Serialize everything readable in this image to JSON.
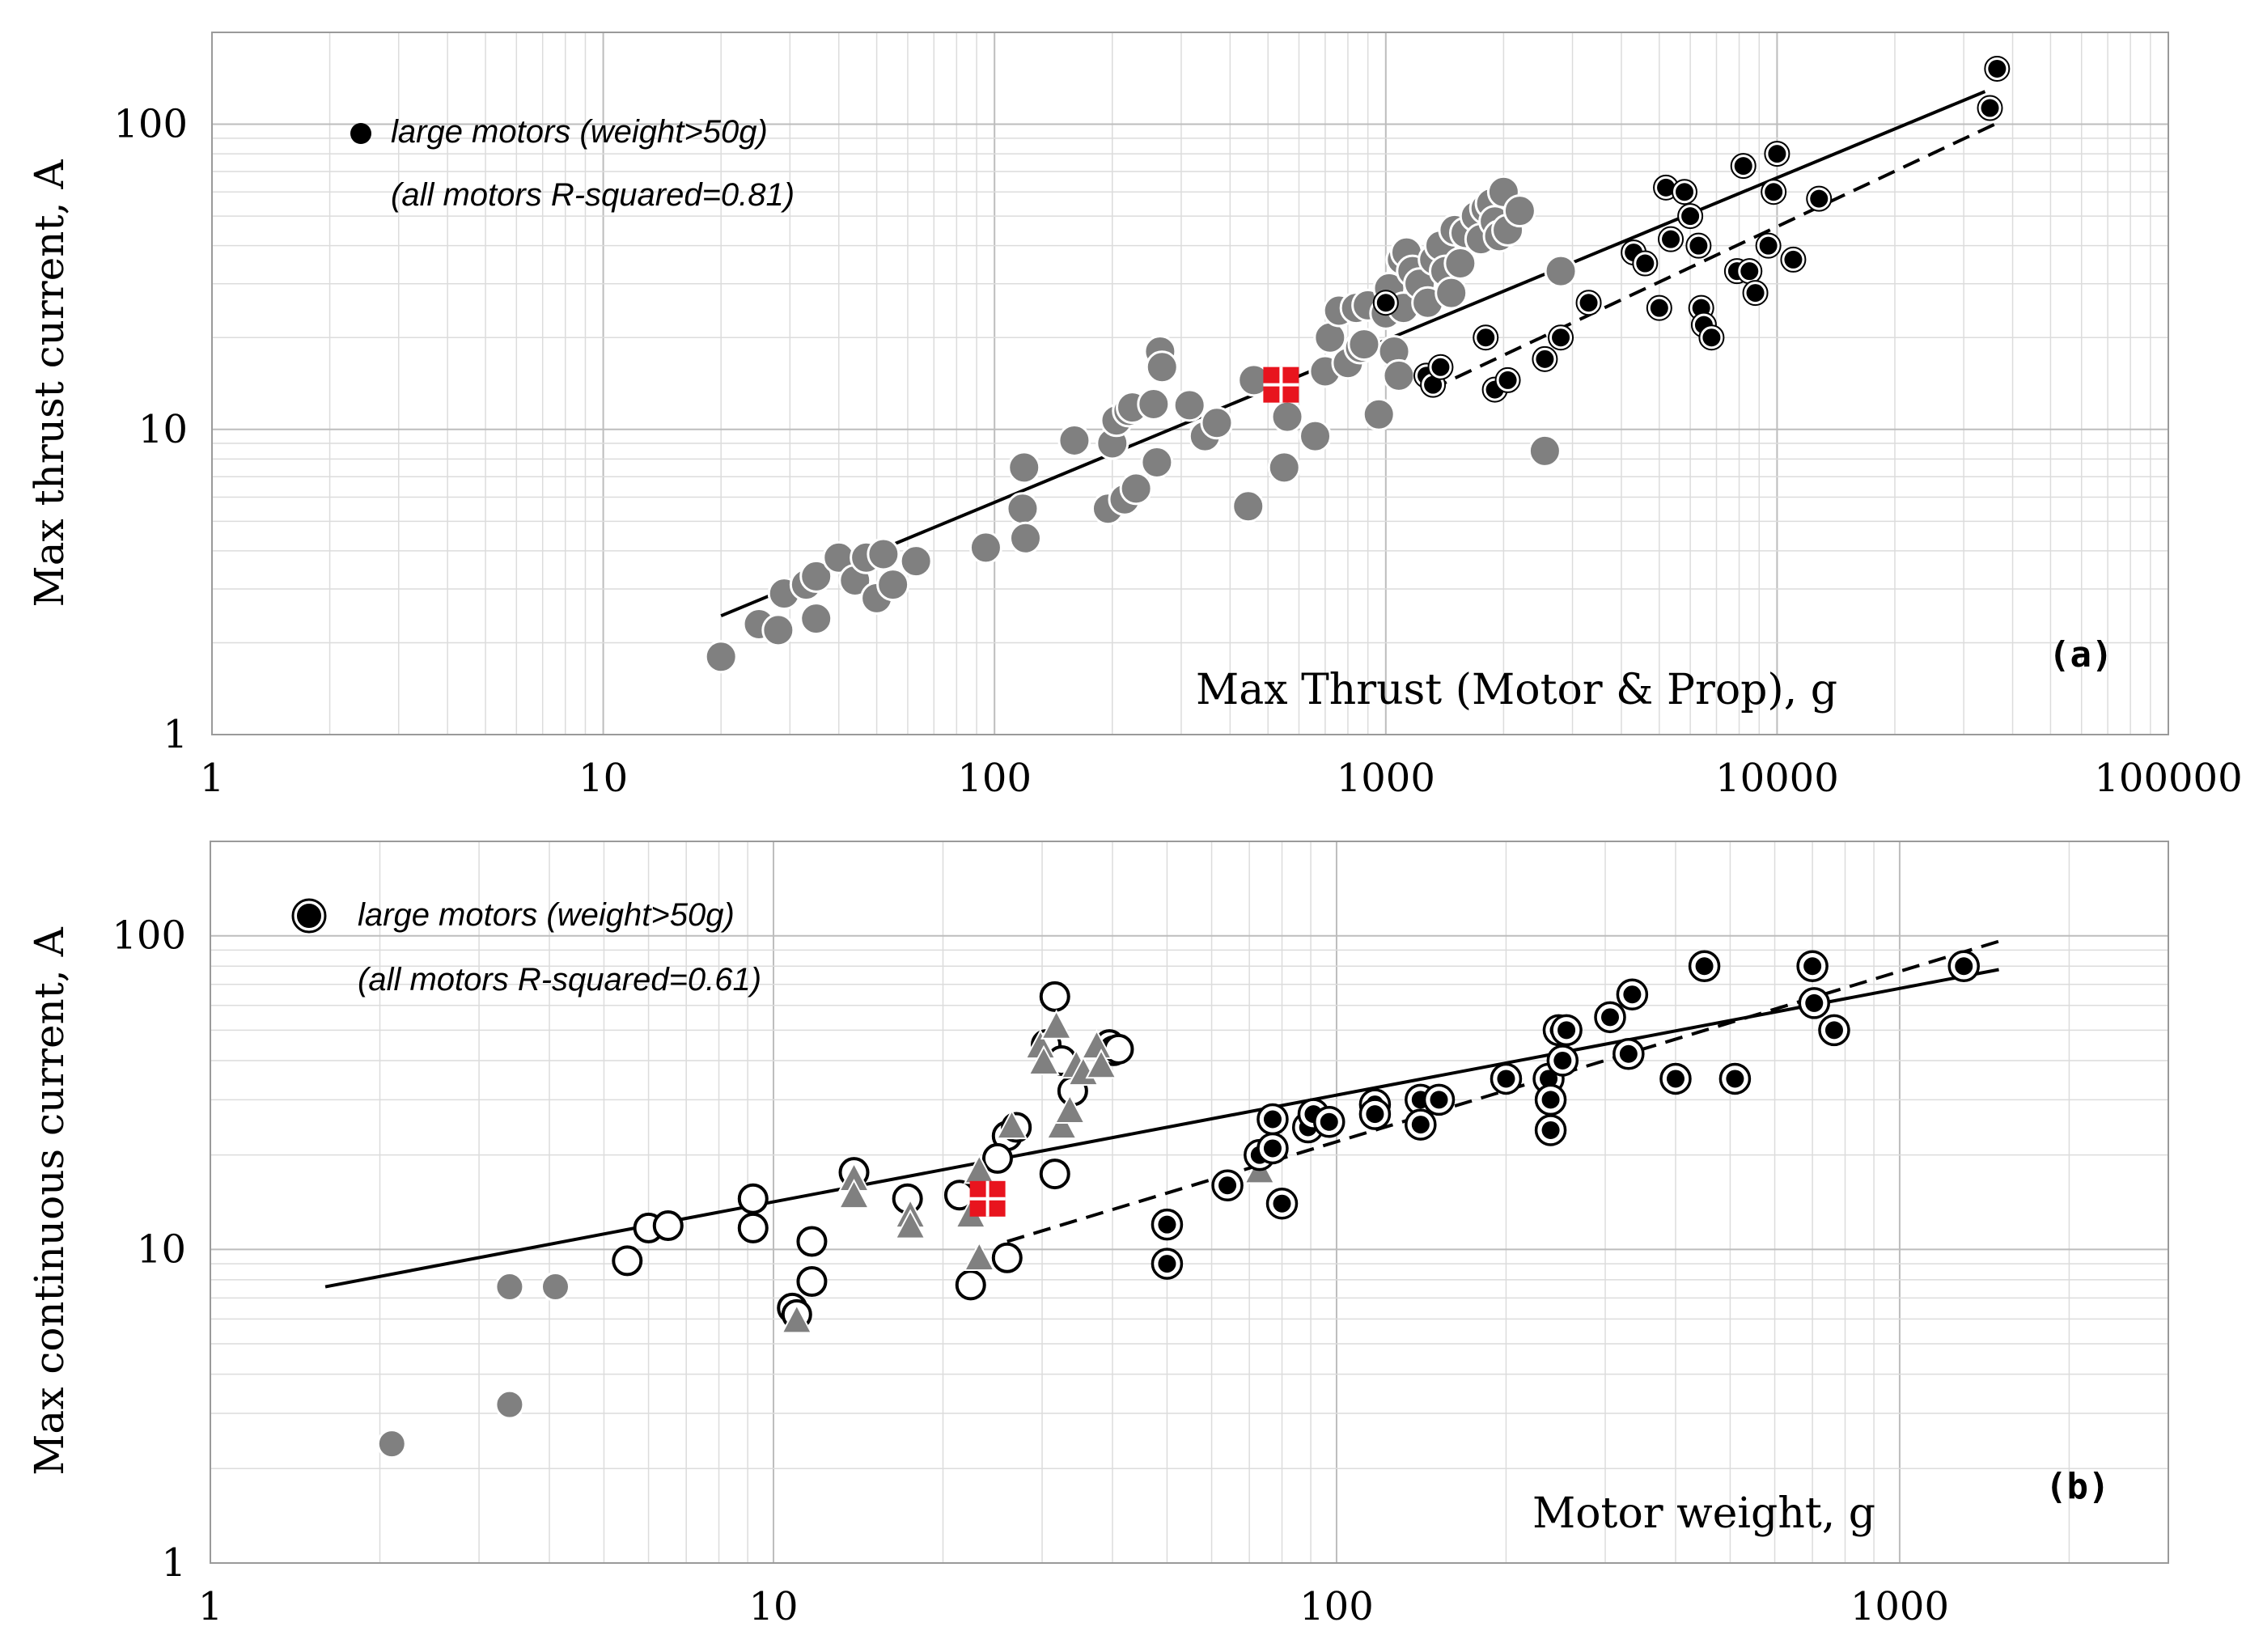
{
  "chart_data": [
    {
      "type": "scatter",
      "panel_label": "(a)",
      "xlabel": "Max Thrust (Motor & Prop), g",
      "ylabel": "Max thrust current, A",
      "xscale": "log",
      "yscale": "log",
      "xlim": [
        1,
        100000
      ],
      "ylim": [
        1,
        200
      ],
      "xticks": [
        "1",
        "10",
        "100",
        "1000",
        "10000",
        "100000"
      ],
      "yticks": [
        "1",
        "10",
        "100"
      ],
      "grid": true,
      "legend": {
        "placement": "top-left",
        "marker_label": "large motors (weight>50g)",
        "note": "(all motors R-squared=0.81)"
      },
      "series": [
        {
          "name": "small motors",
          "style": "gray-circle",
          "points": [
            [
              20,
              1.8
            ],
            [
              25,
              2.3
            ],
            [
              28,
              2.2
            ],
            [
              29,
              2.9
            ],
            [
              33,
              3.1
            ],
            [
              35,
              2.4
            ],
            [
              35,
              3.3
            ],
            [
              40,
              3.8
            ],
            [
              44,
              3.2
            ],
            [
              47,
              3.8
            ],
            [
              50,
              2.8
            ],
            [
              52,
              3.9
            ],
            [
              55,
              3.1
            ],
            [
              63,
              3.7
            ],
            [
              95,
              4.1
            ],
            [
              118,
              5.5
            ],
            [
              119,
              7.5
            ],
            [
              120,
              4.4
            ],
            [
              160,
              9.2
            ],
            [
              195,
              5.5
            ],
            [
              200,
              9.0
            ],
            [
              205,
              10.7
            ],
            [
              215,
              5.9
            ],
            [
              220,
              11.5
            ],
            [
              225,
              11.8
            ],
            [
              230,
              6.4
            ],
            [
              255,
              12.1
            ],
            [
              260,
              7.8
            ],
            [
              265,
              18.0
            ],
            [
              268,
              16.0
            ],
            [
              315,
              12.0
            ],
            [
              345,
              9.5
            ],
            [
              370,
              10.5
            ],
            [
              445,
              5.6
            ],
            [
              460,
              14.5
            ],
            [
              550,
              7.5
            ],
            [
              560,
              11.0
            ],
            [
              660,
              9.5
            ],
            [
              700,
              15.5
            ],
            [
              720,
              20.0
            ],
            [
              760,
              24.5
            ],
            [
              800,
              16.5
            ],
            [
              840,
              25.0
            ],
            [
              860,
              18.5
            ],
            [
              880,
              19.0
            ],
            [
              900,
              25.5
            ],
            [
              960,
              11.2
            ],
            [
              1000,
              24.0
            ],
            [
              1020,
              29.0
            ],
            [
              1050,
              18.0
            ],
            [
              1080,
              15.0
            ],
            [
              1100,
              36.0
            ],
            [
              1110,
              25.0
            ],
            [
              1130,
              38.0
            ],
            [
              1170,
              33.0
            ],
            [
              1220,
              30.0
            ],
            [
              1280,
              26.0
            ],
            [
              1330,
              36.0
            ],
            [
              1380,
              40.0
            ],
            [
              1420,
              33.0
            ],
            [
              1470,
              28.0
            ],
            [
              1500,
              45.0
            ],
            [
              1550,
              35.0
            ],
            [
              1600,
              44.0
            ],
            [
              1700,
              50.0
            ],
            [
              1750,
              42.0
            ],
            [
              1800,
              53.0
            ],
            [
              1860,
              55.0
            ],
            [
              1900,
              48.0
            ],
            [
              1950,
              43.0
            ],
            [
              2000,
              60.0
            ],
            [
              2050,
              45.0
            ],
            [
              2200,
              52.0
            ],
            [
              2550,
              8.5
            ],
            [
              2800,
              33.0
            ]
          ]
        },
        {
          "name": "large motors (weight>50g)",
          "style": "black-dot",
          "points": [
            [
              1000,
              26
            ],
            [
              1270,
              15
            ],
            [
              1320,
              14
            ],
            [
              1380,
              16
            ],
            [
              1800,
              20
            ],
            [
              1900,
              13.5
            ],
            [
              2050,
              14.5
            ],
            [
              2550,
              17
            ],
            [
              2800,
              20
            ],
            [
              3300,
              26
            ],
            [
              4300,
              38
            ],
            [
              4600,
              35
            ],
            [
              5000,
              25
            ],
            [
              5200,
              62
            ],
            [
              5350,
              42
            ],
            [
              5800,
              60
            ],
            [
              6000,
              50
            ],
            [
              6300,
              40
            ],
            [
              6400,
              25
            ],
            [
              6500,
              22
            ],
            [
              6800,
              20
            ],
            [
              7900,
              33
            ],
            [
              8200,
              73
            ],
            [
              8500,
              33
            ],
            [
              8800,
              28
            ],
            [
              9500,
              40
            ],
            [
              9800,
              60
            ],
            [
              10000,
              80
            ],
            [
              11000,
              36
            ],
            [
              12800,
              57
            ],
            [
              35000,
              113
            ],
            [
              36500,
              152
            ]
          ]
        },
        {
          "name": "reference motor",
          "style": "red-square",
          "points": [
            [
              540,
              14
            ]
          ]
        }
      ],
      "fit_lines": [
        {
          "name": "all motors fit",
          "style": "solid",
          "from": [
            20,
            2.45
          ],
          "to": [
            34000,
            128
          ]
        },
        {
          "name": "large motors fit",
          "style": "dashed",
          "from": [
            1300,
            13.5
          ],
          "to": [
            36000,
            100
          ]
        }
      ]
    },
    {
      "type": "scatter",
      "panel_label": "(b)",
      "xlabel": "Motor weight, g",
      "ylabel": "Max continuous current, A",
      "xscale": "log",
      "yscale": "log",
      "xlim": [
        1,
        3000
      ],
      "ylim": [
        1,
        200
      ],
      "xticks": [
        "1",
        "10",
        "100",
        "1000"
      ],
      "yticks": [
        "1",
        "10",
        "100"
      ],
      "grid": true,
      "legend": {
        "placement": "top-left",
        "marker_label": "large motors (weight>50g)",
        "note": "(all motors R-squared=0.61)"
      },
      "series": [
        {
          "name": "small motors (gray)",
          "style": "gray-circle",
          "points": [
            [
              2.1,
              2.4
            ],
            [
              3.4,
              3.2
            ],
            [
              3.4,
              7.6
            ],
            [
              4.1,
              7.6
            ]
          ]
        },
        {
          "name": "small motors (open)",
          "style": "open-circle",
          "points": [
            [
              5.5,
              9.2
            ],
            [
              6,
              11.7
            ],
            [
              6.5,
              11.9
            ],
            [
              9.2,
              14.5
            ],
            [
              9.2,
              11.7
            ],
            [
              10.8,
              6.5
            ],
            [
              11,
              6.2
            ],
            [
              11.7,
              10.6
            ],
            [
              11.7,
              7.9
            ],
            [
              13.9,
              17.6
            ],
            [
              17.3,
              14.5
            ],
            [
              21.4,
              14.9
            ],
            [
              22.4,
              7.7
            ],
            [
              26,
              9.4
            ],
            [
              26,
              23
            ],
            [
              31.6,
              17.4
            ],
            [
              31.6,
              64
            ],
            [
              30.5,
              45
            ],
            [
              32.5,
              40
            ],
            [
              34,
              32
            ],
            [
              39.5,
              45
            ],
            [
              40.2,
              43
            ],
            [
              41,
              43.5
            ],
            [
              25,
              19.5
            ],
            [
              27,
              24.5
            ]
          ]
        },
        {
          "name": "triangles",
          "style": "gray-triangle",
          "points": [
            [
              11,
              6
            ],
            [
              13.9,
              17
            ],
            [
              13.9,
              15
            ],
            [
              17.5,
              13
            ],
            [
              17.5,
              12
            ],
            [
              22.4,
              13
            ],
            [
              23.2,
              18
            ],
            [
              23.2,
              9.5
            ],
            [
              26.5,
              25
            ],
            [
              29.8,
              45
            ],
            [
              30.2,
              40
            ],
            [
              31.8,
              52
            ],
            [
              32.5,
              25
            ],
            [
              33.6,
              28
            ],
            [
              34.5,
              39
            ],
            [
              35.5,
              37
            ],
            [
              37.5,
              45
            ],
            [
              38.2,
              39
            ],
            [
              73,
              18
            ]
          ]
        },
        {
          "name": "large motors (weight>50g)",
          "style": "black-dot",
          "points": [
            [
              50,
              12
            ],
            [
              50,
              9
            ],
            [
              64,
              16
            ],
            [
              73,
              20
            ],
            [
              77,
              26
            ],
            [
              77,
              21
            ],
            [
              80,
              14
            ],
            [
              89,
              24.5
            ],
            [
              91,
              27
            ],
            [
              97,
              25.5
            ],
            [
              117,
              29
            ],
            [
              117,
              27
            ],
            [
              141,
              30
            ],
            [
              141,
              25
            ],
            [
              152,
              30
            ],
            [
              200,
              35
            ],
            [
              238,
              35
            ],
            [
              240,
              30
            ],
            [
              240,
              24
            ],
            [
              248,
              50
            ],
            [
              252,
              40
            ],
            [
              256,
              50
            ],
            [
              306,
              55
            ],
            [
              330,
              42
            ],
            [
              335,
              65
            ],
            [
              400,
              35
            ],
            [
              450,
              80
            ],
            [
              510,
              35
            ],
            [
              700,
              80
            ],
            [
              705,
              61
            ],
            [
              765,
              50
            ],
            [
              1300,
              80
            ]
          ]
        },
        {
          "name": "reference motor",
          "style": "red-square",
          "points": [
            [
              24,
              14.5
            ]
          ]
        }
      ],
      "fit_lines": [
        {
          "name": "all motors fit",
          "style": "solid",
          "from": [
            1.6,
            7.6
          ],
          "to": [
            1500,
            78
          ]
        },
        {
          "name": "large motors fit",
          "style": "dashed",
          "from": [
            26,
            10.6
          ],
          "to": [
            1500,
            96
          ]
        }
      ]
    }
  ]
}
